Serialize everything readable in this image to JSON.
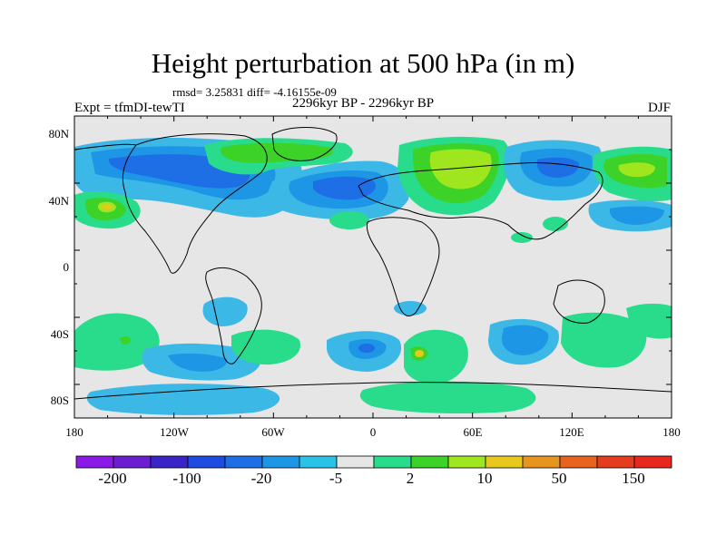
{
  "title": "Height perturbation at 500 hPa (in m)",
  "stats": "rmsd= 3.25831 diff= -4.16155e-09",
  "period": "2296kyr BP - 2296kyr BP",
  "experiment": "Expt = tfmDI-tewTI",
  "season": "DJF",
  "map": {
    "background_color": "#e6e6e6",
    "lat_labels": [
      "80N",
      "40N",
      "0",
      "40S",
      "80S"
    ],
    "lon_labels": [
      "180",
      "120W",
      "60W",
      "0",
      "60E",
      "120E",
      "180"
    ]
  },
  "colorbar": {
    "colors": [
      "#8c1ae6",
      "#6b1ecf",
      "#3a24c8",
      "#1e4be0",
      "#1e6ee6",
      "#1e96e6",
      "#28c3e6",
      "#e6e6e6",
      "#28dc8c",
      "#3cd228",
      "#a0e61e",
      "#e6c81e",
      "#e6961e",
      "#e6641e",
      "#e63c1e",
      "#e6281e"
    ],
    "labels": [
      "-200",
      "-100",
      "-20",
      "-5",
      "2",
      "10",
      "50",
      "150"
    ]
  },
  "palette": {
    "blue_light": "#3cb8e6",
    "blue_mid": "#1e96e6",
    "blue_dark": "#1e6ee6",
    "green": "#28dc8c",
    "green_mid": "#3cd228",
    "green_light": "#a0e61e",
    "yellow": "#e6c81e"
  }
}
